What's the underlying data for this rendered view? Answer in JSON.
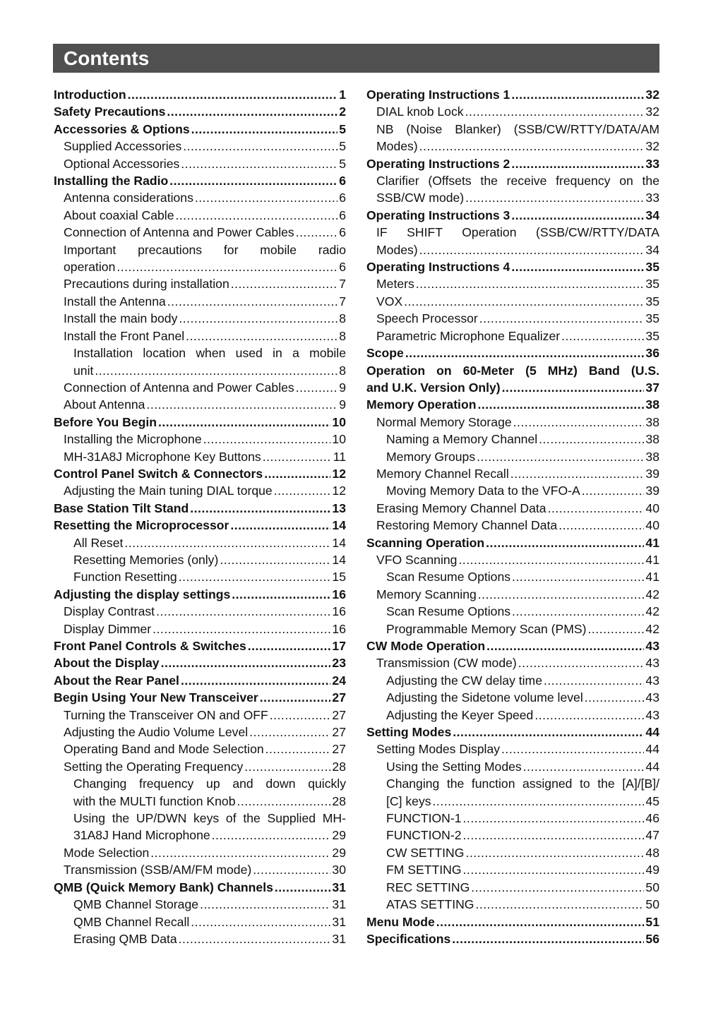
{
  "title": "Contents",
  "left": [
    {
      "l": 0,
      "text": "Introduction",
      "p": "1"
    },
    {
      "l": 0,
      "text": "Safety Precautions",
      "p": "2"
    },
    {
      "l": 0,
      "text": "Accessories & Options",
      "p": "5"
    },
    {
      "l": 1,
      "text": "Supplied Accessories",
      "p": "5"
    },
    {
      "l": 1,
      "text": "Optional Accessories",
      "p": "5"
    },
    {
      "l": 0,
      "text": "Installing the Radio",
      "p": "6"
    },
    {
      "l": 1,
      "text": "Antenna considerations",
      "p": "6"
    },
    {
      "l": 1,
      "text": "About coaxial Cable",
      "p": "6"
    },
    {
      "l": 1,
      "text": "Connection of Antenna and Power Cables",
      "p": "6"
    },
    {
      "l": 1,
      "lines": [
        "Important precautions for mobile radio",
        "operation"
      ],
      "p": "6"
    },
    {
      "l": 1,
      "text": "Precautions during installation",
      "p": "7"
    },
    {
      "l": 1,
      "text": "Install the Antenna",
      "p": "7"
    },
    {
      "l": 1,
      "text": "Install the main body",
      "p": "8"
    },
    {
      "l": 1,
      "text": "Install the Front Panel",
      "p": "8"
    },
    {
      "l": 2,
      "lines": [
        "Installation location when used in a mobile",
        "unit"
      ],
      "p": "8"
    },
    {
      "l": 1,
      "text": "Connection of Antenna and Power Cables",
      "p": "9"
    },
    {
      "l": 1,
      "text": "About Antenna",
      "p": "9"
    },
    {
      "l": 0,
      "text": "Before You Begin",
      "p": "10"
    },
    {
      "l": 1,
      "text": "Installing the Microphone",
      "p": "10"
    },
    {
      "l": 1,
      "text": "MH-31A8J Microphone Key Buttons",
      "p": "11"
    },
    {
      "l": 0,
      "text": "Control Panel Switch & Connectors",
      "p": "12"
    },
    {
      "l": 1,
      "text": "Adjusting the Main tuning DIAL torque",
      "p": "12"
    },
    {
      "l": 0,
      "text": "Base Station Tilt Stand",
      "p": "13"
    },
    {
      "l": 0,
      "text": "Resetting the Microprocessor",
      "p": "14"
    },
    {
      "l": 2,
      "text": "All Reset",
      "p": "14"
    },
    {
      "l": 2,
      "text": "Resetting Memories (only)",
      "p": "14"
    },
    {
      "l": 2,
      "text": "Function Resetting",
      "p": "15"
    },
    {
      "l": 0,
      "text": "Adjusting the display settings",
      "p": "16"
    },
    {
      "l": 1,
      "text": "Display Contrast",
      "p": "16"
    },
    {
      "l": 1,
      "text": "Display Dimmer",
      "p": "16"
    },
    {
      "l": 0,
      "text": "Front Panel Controls & Switches",
      "p": "17"
    },
    {
      "l": 0,
      "text": "About the Display",
      "p": "23"
    },
    {
      "l": 0,
      "text": "About the Rear Panel",
      "p": "24"
    },
    {
      "l": 0,
      "text": "Begin Using Your New Transceiver",
      "p": "27"
    },
    {
      "l": 1,
      "text": "Turning the Transceiver ON and OFF",
      "p": "27"
    },
    {
      "l": 1,
      "text": "Adjusting the Audio Volume Level",
      "p": "27"
    },
    {
      "l": 1,
      "text": "Operating Band and Mode Selection",
      "p": "27"
    },
    {
      "l": 1,
      "text": "Setting the Operating Frequency",
      "p": "28"
    },
    {
      "l": 2,
      "lines": [
        "Changing frequency up and down quickly",
        "with the MULTI function Knob"
      ],
      "p": "28"
    },
    {
      "l": 2,
      "lines": [
        "Using the UP/DWN keys of the Supplied MH-",
        "31A8J Hand Microphone"
      ],
      "p": "29"
    },
    {
      "l": 1,
      "text": "Mode Selection",
      "p": "29"
    },
    {
      "l": 1,
      "text": "Transmission (SSB/AM/FM mode)",
      "p": "30"
    },
    {
      "l": 0,
      "text": "QMB (Quick Memory Bank) Channels",
      "p": "31"
    },
    {
      "l": 2,
      "text": "QMB Channel Storage",
      "p": "31"
    },
    {
      "l": 2,
      "text": "QMB Channel Recall",
      "p": "31"
    },
    {
      "l": 2,
      "text": "Erasing QMB Data",
      "p": "31"
    }
  ],
  "right": [
    {
      "l": 0,
      "text": "Operating Instructions 1",
      "p": "32"
    },
    {
      "l": 1,
      "text": "DIAL knob Lock",
      "p": "32"
    },
    {
      "l": 1,
      "lines": [
        "NB (Noise Blanker) (SSB/CW/RTTY/DATA/AM",
        "Modes)"
      ],
      "p": "32"
    },
    {
      "l": 0,
      "text": "Operating Instructions 2",
      "p": "33"
    },
    {
      "l": 1,
      "lines": [
        "Clarifier (Offsets the receive frequency on the",
        "SSB/CW mode)"
      ],
      "p": "33"
    },
    {
      "l": 0,
      "text": "Operating Instructions 3",
      "p": "34"
    },
    {
      "l": 1,
      "lines": [
        "IF SHIFT Operation (SSB/CW/RTTY/DATA",
        "Modes)"
      ],
      "p": "34"
    },
    {
      "l": 0,
      "text": "Operating Instructions 4",
      "p": "35"
    },
    {
      "l": 1,
      "text": "Meters",
      "p": "35"
    },
    {
      "l": 1,
      "text": "VOX",
      "p": "35"
    },
    {
      "l": 1,
      "text": "Speech Processor",
      "p": "35"
    },
    {
      "l": 1,
      "text": "Parametric Microphone Equalizer",
      "p": "35"
    },
    {
      "l": 0,
      "text": "Scope",
      "p": "36"
    },
    {
      "l": 0,
      "lines": [
        "Operation on 60-Meter (5 MHz) Band (U.S.",
        "and U.K. Version Only)"
      ],
      "p": "37"
    },
    {
      "l": 0,
      "text": "Memory Operation",
      "p": "38"
    },
    {
      "l": 1,
      "text": "Normal Memory Storage",
      "p": "38"
    },
    {
      "l": 2,
      "text": "Naming a Memory Channel",
      "p": "38"
    },
    {
      "l": 2,
      "text": "Memory Groups",
      "p": "38"
    },
    {
      "l": 1,
      "text": "Memory Channel Recall",
      "p": "39"
    },
    {
      "l": 2,
      "text": "Moving Memory Data to the VFO-A",
      "p": "39"
    },
    {
      "l": 1,
      "text": "Erasing Memory Channel Data",
      "p": "40"
    },
    {
      "l": 1,
      "text": "Restoring Memory Channel Data",
      "p": "40"
    },
    {
      "l": 0,
      "text": "Scanning Operation",
      "p": "41"
    },
    {
      "l": 1,
      "text": "VFO Scanning",
      "p": "41"
    },
    {
      "l": 2,
      "text": "Scan Resume Options",
      "p": "41"
    },
    {
      "l": 1,
      "text": "Memory Scanning",
      "p": "42"
    },
    {
      "l": 2,
      "text": "Scan Resume Options",
      "p": "42"
    },
    {
      "l": 2,
      "text": "Programmable Memory Scan (PMS)",
      "p": "42"
    },
    {
      "l": 0,
      "text": "CW Mode Operation",
      "p": "43"
    },
    {
      "l": 1,
      "text": "Transmission (CW mode)",
      "p": "43"
    },
    {
      "l": 2,
      "text": "Adjusting the CW delay time",
      "p": "43"
    },
    {
      "l": 2,
      "text": "Adjusting the Sidetone volume level",
      "p": "43"
    },
    {
      "l": 2,
      "text": "Adjusting the Keyer Speed",
      "p": "43"
    },
    {
      "l": 0,
      "text": "Setting Modes",
      "p": "44"
    },
    {
      "l": 1,
      "text": "Setting Modes Display",
      "p": "44"
    },
    {
      "l": 2,
      "text": "Using the Setting Modes",
      "p": "44"
    },
    {
      "l": 2,
      "lines": [
        "Changing the function assigned to the [A]/[B]/",
        "[C] keys"
      ],
      "p": "45"
    },
    {
      "l": 2,
      "text": "FUNCTION-1",
      "p": "46"
    },
    {
      "l": 2,
      "text": "FUNCTION-2",
      "p": "47"
    },
    {
      "l": 2,
      "text": "CW SETTING",
      "p": "48"
    },
    {
      "l": 2,
      "text": "FM SETTING",
      "p": "49"
    },
    {
      "l": 2,
      "text": "REC SETTING",
      "p": "50"
    },
    {
      "l": 2,
      "text": "ATAS SETTING",
      "p": "50"
    },
    {
      "l": 0,
      "text": "Menu Mode",
      "p": "51"
    },
    {
      "l": 0,
      "text": "Specifications",
      "p": "56"
    }
  ]
}
